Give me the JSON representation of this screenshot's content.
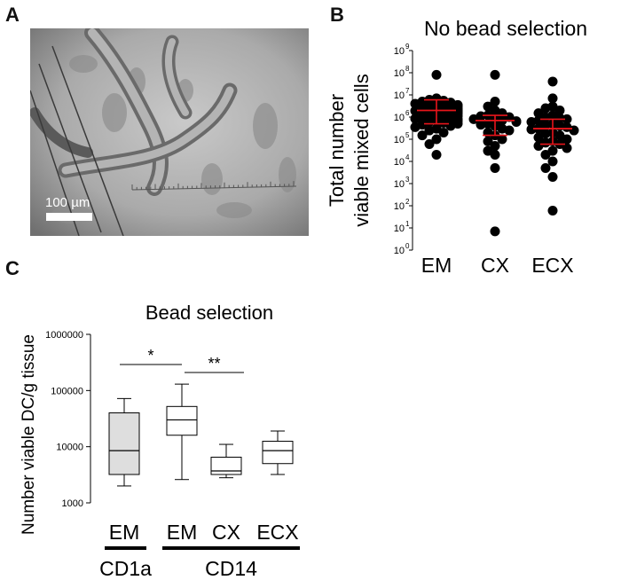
{
  "panels": {
    "a": {
      "letter": "A",
      "scale_bar_label": "100 µm"
    },
    "b": {
      "letter": "B"
    },
    "c": {
      "letter": "C"
    }
  },
  "chart_data": [
    {
      "id": "B",
      "type": "scatter",
      "title": "No bead selection",
      "ylabel": "Total number viable mixed cells",
      "ylabel_lines": [
        "Total number",
        "viable mixed cells"
      ],
      "y_scale": "log10",
      "ylim": [
        1,
        1000000000
      ],
      "y_tick_exponents": [
        0,
        1,
        2,
        3,
        4,
        5,
        6,
        7,
        8,
        9
      ],
      "y_tick_base": "10",
      "categories": [
        "EM",
        "CX",
        "ECX"
      ],
      "marker_color": "#000000",
      "summary_color": "#e8151b",
      "groups": [
        {
          "category": "EM",
          "median": 2000000,
          "q1": 500000,
          "q3": 6000000,
          "points": [
            80000000,
            7000000,
            6000000,
            5500000,
            5000000,
            4500000,
            4000000,
            3500000,
            3200000,
            3000000,
            2800000,
            2600000,
            2400000,
            2200000,
            2100000,
            2000000,
            1900000,
            1800000,
            1700000,
            1600000,
            1500000,
            1400000,
            1300000,
            1200000,
            1100000,
            1000000,
            900000,
            850000,
            800000,
            700000,
            650000,
            600000,
            550000,
            500000,
            450000,
            400000,
            350000,
            300000,
            250000,
            200000,
            150000,
            100000,
            60000,
            20000
          ]
        },
        {
          "category": "CX",
          "median": 700000,
          "q1": 150000,
          "q3": 1200000,
          "points": [
            80000000,
            5000000,
            3000000,
            2000000,
            1500000,
            1200000,
            1100000,
            1000000,
            900000,
            800000,
            700000,
            650000,
            600000,
            500000,
            450000,
            400000,
            300000,
            250000,
            200000,
            150000,
            100000,
            80000,
            50000,
            30000,
            20000,
            5000,
            7
          ]
        },
        {
          "category": "ECX",
          "median": 300000,
          "q1": 60000,
          "q3": 800000,
          "points": [
            40000000,
            7000000,
            3000000,
            2500000,
            2000000,
            1500000,
            1200000,
            1000000,
            900000,
            800000,
            700000,
            600000,
            500000,
            450000,
            400000,
            350000,
            300000,
            280000,
            250000,
            200000,
            180000,
            150000,
            120000,
            100000,
            80000,
            70000,
            60000,
            50000,
            40000,
            30000,
            20000,
            10000,
            5000,
            2000,
            60
          ]
        }
      ]
    },
    {
      "id": "C",
      "type": "box",
      "title": "Bead selection",
      "ylabel": "Number viable DC/g tissue",
      "y_scale": "log10",
      "ylim": [
        1000,
        1000000
      ],
      "y_ticks": [
        "1000",
        "10000",
        "100000",
        "1000000"
      ],
      "categories": [
        "EM",
        "EM",
        "CX",
        "ECX"
      ],
      "group_labels": [
        {
          "label": "CD1a",
          "from": 0,
          "to": 0
        },
        {
          "label": "CD14",
          "from": 1,
          "to": 3
        }
      ],
      "boxes": [
        {
          "category": "EM",
          "group": "CD1a",
          "min": 2000,
          "q1": 3200,
          "median": 8500,
          "q3": 40000,
          "max": 72000,
          "fill": "#dedede"
        },
        {
          "category": "EM",
          "group": "CD14",
          "min": 2600,
          "q1": 16000,
          "median": 30000,
          "q3": 52000,
          "max": 130000,
          "fill": "#ffffff"
        },
        {
          "category": "CX",
          "group": "CD14",
          "min": 2800,
          "q1": 3200,
          "median": 3700,
          "q3": 6500,
          "max": 11000,
          "fill": "#ffffff"
        },
        {
          "category": "ECX",
          "group": "CD14",
          "min": 3200,
          "q1": 5000,
          "median": 8500,
          "q3": 12500,
          "max": 19000,
          "fill": "#ffffff"
        }
      ],
      "significance": [
        {
          "from": 0,
          "to": 1,
          "label": "*"
        },
        {
          "from": 1,
          "to": 2,
          "label": "**"
        }
      ]
    }
  ]
}
